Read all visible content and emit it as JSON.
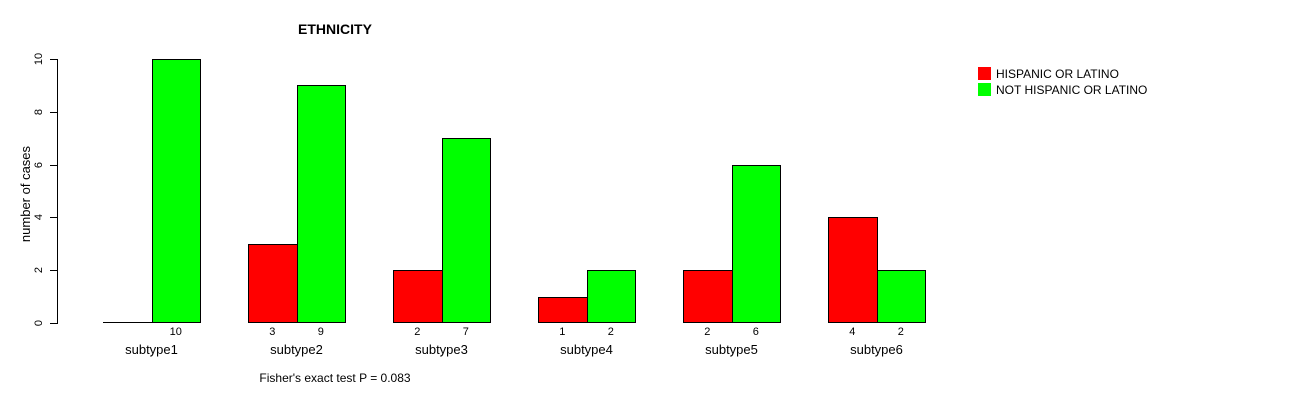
{
  "chart_data": {
    "type": "bar",
    "title": "ETHNICITY",
    "xlabel": "",
    "ylabel": "number of cases",
    "categories": [
      "subtype1",
      "subtype2",
      "subtype3",
      "subtype4",
      "subtype5",
      "subtype6"
    ],
    "series": [
      {
        "name": "HISPANIC OR LATINO",
        "color": "#FF0000",
        "values": [
          0,
          3,
          2,
          1,
          2,
          4
        ]
      },
      {
        "name": "NOT HISPANIC OR LATINO",
        "color": "#00FF00",
        "values": [
          10,
          9,
          7,
          2,
          6,
          2
        ]
      }
    ],
    "ylim": [
      0,
      10
    ],
    "yticks": [
      0,
      2,
      4,
      6,
      8,
      10
    ],
    "grid": false,
    "legend_position": "top-right",
    "bar_border_color": "#000000",
    "value_labels_shown_when_nonzero": true,
    "annotation": "Fisher's exact test P = 0.083"
  }
}
